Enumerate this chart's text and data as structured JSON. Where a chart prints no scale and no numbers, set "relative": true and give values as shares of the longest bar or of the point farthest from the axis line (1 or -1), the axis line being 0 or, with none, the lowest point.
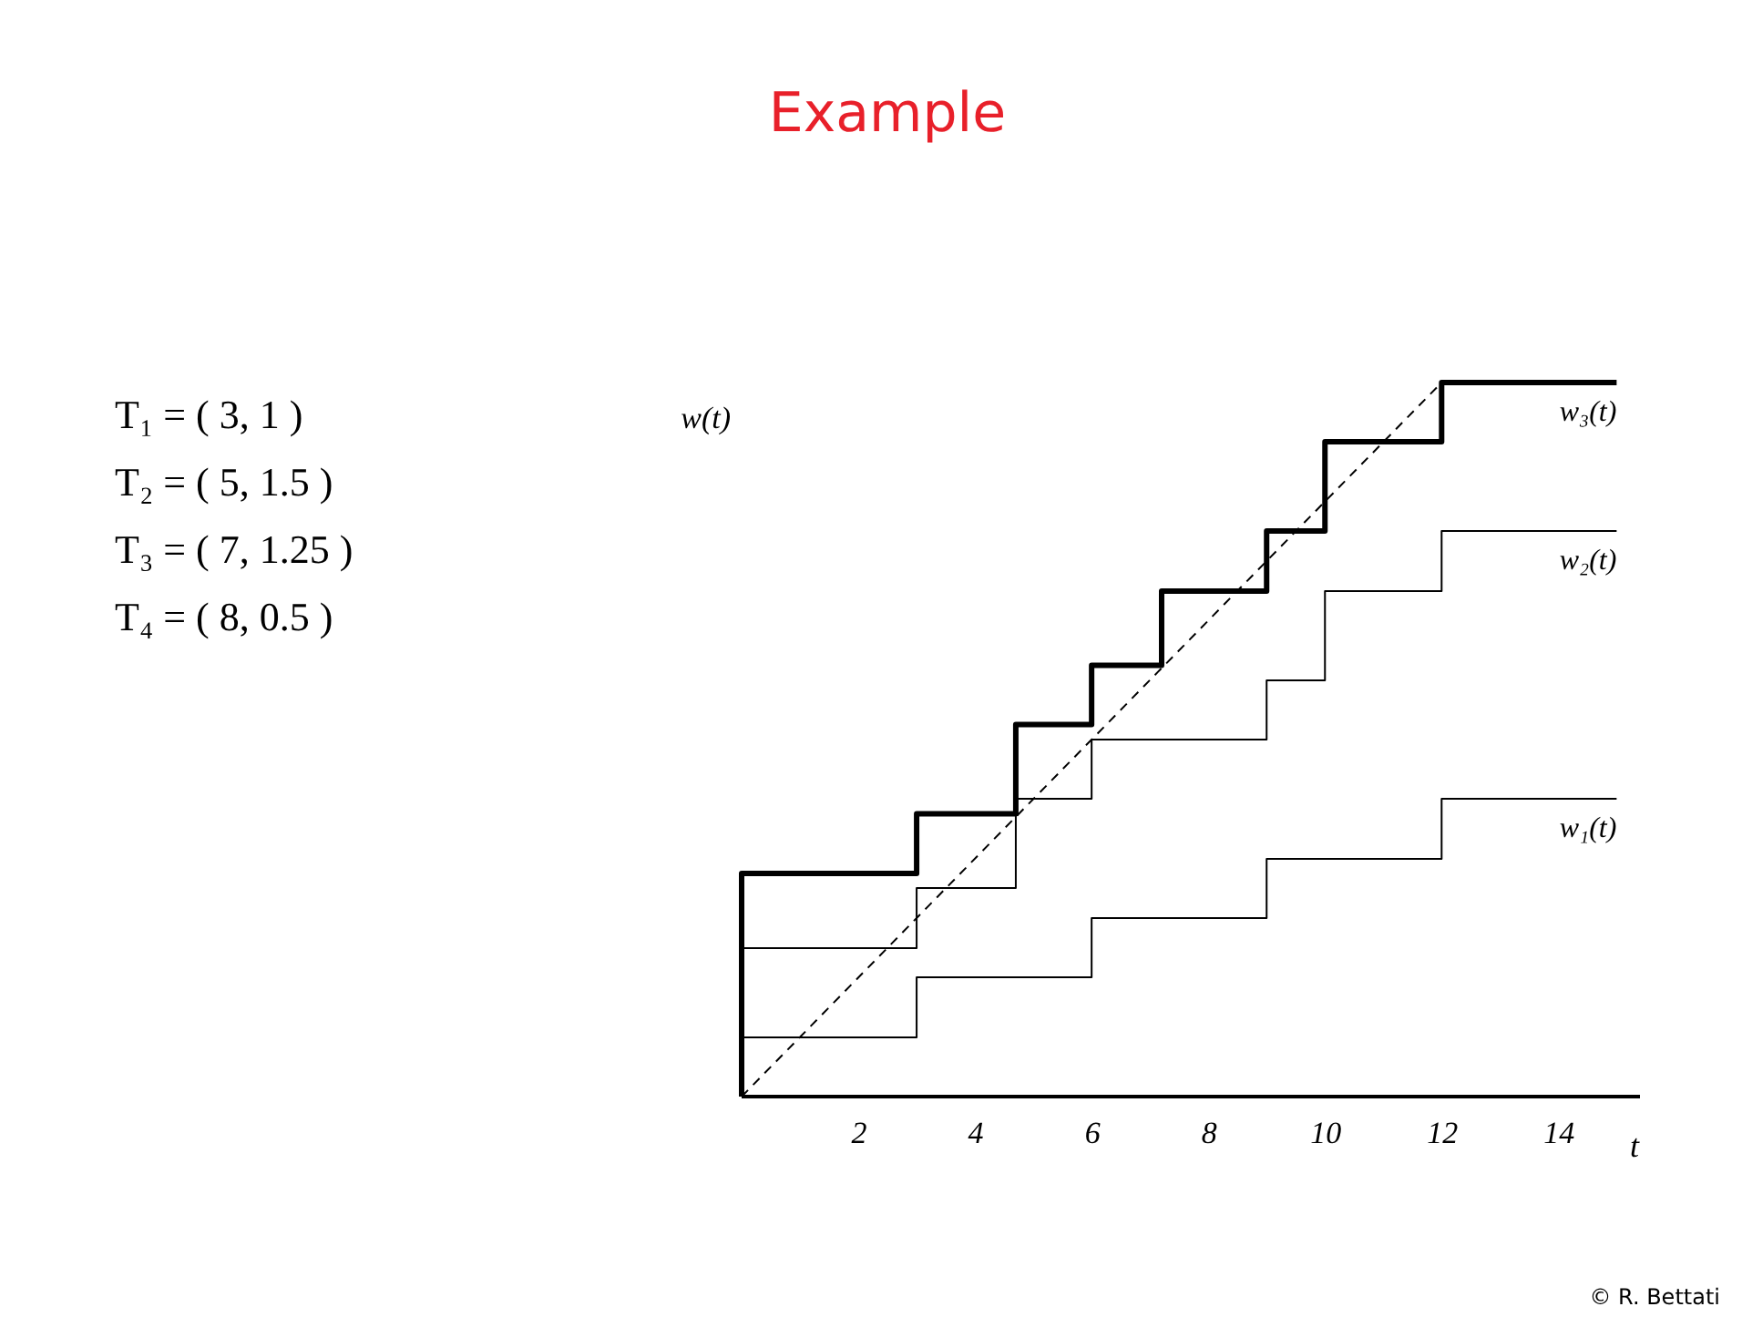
{
  "chart_data": {
    "type": "step",
    "title": "Example",
    "xlabel": "t",
    "ylabel": "w(t)",
    "relative": true,
    "grid": false,
    "tick_labels": "x",
    "line_style": "solid",
    "xlim": [
      0,
      15.4
    ],
    "xticks": [
      2,
      4,
      6,
      8,
      10,
      12,
      14
    ],
    "series": [
      {
        "name": "w₃(t)",
        "color": "#000000",
        "x": [
          0,
          0,
          3,
          4.7,
          6,
          7.2,
          9,
          10,
          12,
          15
        ],
        "values": [
          0,
          0.3125,
          0.396,
          0.521,
          0.604,
          0.708,
          0.792,
          0.917,
          1,
          1
        ]
      },
      {
        "name": "w₂(t)",
        "color": "#000000",
        "x": [
          0,
          3,
          4.7,
          6,
          9,
          10,
          12,
          15
        ],
        "values": [
          0.208,
          0.292,
          0.417,
          0.5,
          0.583,
          0.708,
          0.792,
          0.792
        ]
      },
      {
        "name": "w₁(t)",
        "color": "#000000",
        "x": [
          0,
          3,
          6,
          9,
          12,
          15
        ],
        "values": [
          0.083,
          0.167,
          0.25,
          0.333,
          0.417,
          0.417
        ]
      },
      {
        "type": "line",
        "line_style": "dashed",
        "color": "#000000",
        "x": [
          0,
          12
        ],
        "values": [
          0,
          1
        ]
      }
    ],
    "annotations": [
      "T₁   =   (   3,    1         )",
      "T₂   =   (   5,    1.5      )",
      "T₃   =   (   7,    1.25    )",
      "T₄   =   (   8,    0.5      )",
      "© R. Bettati"
    ]
  }
}
